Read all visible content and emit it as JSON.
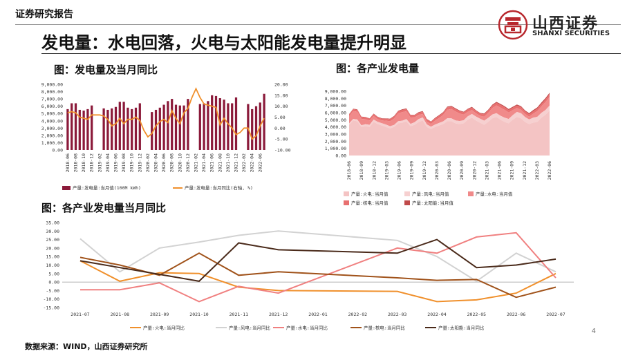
{
  "header": {
    "section_label": "证券研究报告",
    "company_cn": "山西证券",
    "company_en": "SHANXI SECURITIES",
    "brand_color": "#b8282e"
  },
  "slide": {
    "title": "发电量：水电回落，火电与太阳能发电量提升明显",
    "page_number": "4",
    "source": "数据来源：WIND，山西证券研究所"
  },
  "figures": {
    "fig1_title": "图：发电量及当月同比",
    "fig2_title": "图：各产业发电量",
    "fig3_title": "图：各产业发电量当月同比"
  },
  "chart_data": [
    {
      "id": "fig1",
      "type": "bar",
      "x": [
        "2018-06",
        "2018-07",
        "2018-08",
        "2018-09",
        "2018-10",
        "2018-11",
        "2018-12",
        "2019-01",
        "2019-02",
        "2019-03",
        "2019-04",
        "2019-05",
        "2019-06",
        "2019-07",
        "2019-08",
        "2019-09",
        "2019-10",
        "2019-11",
        "2019-12",
        "2020-01",
        "2020-02",
        "2020-03",
        "2020-04",
        "2020-05",
        "2020-06",
        "2020-07",
        "2020-08",
        "2020-09",
        "2020-10",
        "2020-11",
        "2020-12",
        "2021-01",
        "2021-02",
        "2021-03",
        "2021-04",
        "2021-05",
        "2021-06",
        "2021-07",
        "2021-08",
        "2021-09",
        "2021-10",
        "2021-11",
        "2021-12",
        "2022-01",
        "2022-02",
        "2022-03",
        "2022-04",
        "2022-05",
        "2022-06",
        "2022-07"
      ],
      "x_tick_labels": [
        "2018-06",
        "2018-08",
        "2018-10",
        "2018-12",
        "2019-02",
        "2019-04",
        "2019-06",
        "2019-08",
        "2019-10",
        "2019-12",
        "2020-02",
        "2020-04",
        "2020-06",
        "2020-08",
        "2020-10",
        "2020-12",
        "2021-02",
        "2021-04",
        "2021-06",
        "2021-08",
        "2021-10",
        "2021-12",
        "2022-02",
        "2022-04",
        "2022-06"
      ],
      "series": [
        {
          "name": "产量:发电量:当月值(100M kWh)",
          "axis": "left",
          "type": "bar",
          "color": "#8b1a3a",
          "values": [
            5600,
            6400,
            6400,
            5500,
            5400,
            5600,
            6100,
            null,
            null,
            5700,
            5500,
            5700,
            5900,
            6600,
            6600,
            5800,
            5600,
            5800,
            6400,
            null,
            null,
            5200,
            5500,
            5800,
            6200,
            6700,
            7000,
            6200,
            6100,
            6100,
            7000,
            null,
            null,
            6300,
            6400,
            6700,
            7500,
            7400,
            7100,
            6900,
            6400,
            6400,
            7200,
            null,
            null,
            6300,
            5600,
            6000,
            6500,
            7700
          ]
        },
        {
          "name": "产量:发电量:当月同比(右轴, %)",
          "axis": "right",
          "type": "line",
          "color": "#f0902c",
          "values": [
            7.0,
            7.5,
            7.0,
            5.0,
            4.5,
            4.0,
            6.0,
            6.0,
            6.0,
            5.5,
            4.0,
            1.0,
            2.0,
            4.5,
            2.0,
            4.0,
            4.0,
            5.0,
            3.5,
            -1.0,
            -4.0,
            -2.5,
            1.0,
            3.0,
            4.0,
            2.5,
            8.0,
            4.5,
            2.0,
            7.0,
            9.0,
            14.0,
            18.0,
            14.0,
            11.0,
            10.5,
            10.0,
            9.5,
            1.5,
            4.5,
            2.0,
            0.0,
            -3.0,
            -2.0,
            0.0,
            0.0,
            -5.0,
            -3.5,
            1.0,
            4.5
          ]
        }
      ],
      "y_left": {
        "ticks": [
          "0.00",
          "1,000.00",
          "2,000.00",
          "3,000.00",
          "4,000.00",
          "5,000.00",
          "6,000.00",
          "7,000.00",
          "8,000.00",
          "9,000.00"
        ],
        "lim": [
          0,
          9000
        ]
      },
      "y_right": {
        "ticks": [
          "-10.00",
          "-5.00",
          "0.00",
          "5.00",
          "10.00",
          "15.00",
          "20.00"
        ],
        "lim": [
          -10,
          20
        ]
      },
      "legend": [
        "产量:发电量:当月值(100M kWh)",
        "产量:发电量:当月同比(右轴, %)"
      ]
    },
    {
      "id": "fig2",
      "type": "area",
      "x_tick_labels": [
        "2018-06",
        "2018-09",
        "2018-12",
        "2019-03",
        "2019-06",
        "2019-09",
        "2019-12",
        "2020-03",
        "2020-06",
        "2020-09",
        "2020-12",
        "2021-03",
        "2021-06",
        "2021-09",
        "2021-12",
        "2022-03",
        "2022-06"
      ],
      "series": [
        {
          "name": "产量:火电:当月值",
          "color": "#f4c4c4",
          "values": [
            4300,
            4900,
            4800,
            4000,
            4100,
            4000,
            4700,
            4400,
            4200,
            4000,
            3800,
            4000,
            4500,
            4600,
            4800,
            4100,
            4300,
            4700,
            4900,
            4000,
            3700,
            4000,
            4200,
            4400,
            4800,
            4800,
            4500,
            4400,
            4500,
            5000,
            5300,
            4900,
            4600,
            4300,
            4700,
            5200,
            5400,
            5000,
            4700,
            4500,
            5000,
            5400,
            5200,
            4700,
            4400,
            4600,
            4700,
            5300,
            5700,
            6300
          ]
        },
        {
          "name": "产量:风电:当月值",
          "color": "#f6d0d0",
          "values": [
            200,
            220,
            240,
            230,
            280,
            300,
            330,
            300,
            320,
            330,
            300,
            280,
            300,
            280,
            300,
            320,
            350,
            400,
            420,
            350,
            330,
            340,
            360,
            380,
            420,
            400,
            420,
            430,
            440,
            480,
            520,
            560,
            560,
            580,
            560,
            540,
            520,
            560,
            600,
            620,
            650,
            700,
            720,
            680,
            640,
            700,
            720,
            680,
            680,
            700
          ]
        },
        {
          "name": "产量:水电:当月值",
          "color": "#f08a8a",
          "values": [
            1000,
            1100,
            1100,
            900,
            700,
            600,
            500,
            400,
            400,
            550,
            700,
            900,
            1100,
            1200,
            1100,
            900,
            700,
            600,
            500,
            400,
            400,
            550,
            700,
            900,
            1200,
            1300,
            1250,
            1050,
            800,
            650,
            550,
            450,
            400,
            550,
            700,
            900,
            1100,
            1150,
            1100,
            900,
            700,
            550,
            500,
            450,
            400,
            550,
            800,
            900,
            1100,
            1200
          ]
        },
        {
          "name": "产量:核电:当月值",
          "color": "#e87070",
          "values": [
            250,
            260,
            270,
            260,
            260,
            250,
            270,
            260,
            240,
            270,
            280,
            280,
            290,
            300,
            310,
            290,
            280,
            290,
            310,
            300,
            270,
            300,
            300,
            310,
            320,
            330,
            340,
            320,
            310,
            320,
            340,
            340,
            310,
            330,
            330,
            340,
            350,
            360,
            370,
            350,
            340,
            350,
            370,
            360,
            330,
            350,
            350,
            360,
            370,
            380
          ]
        },
        {
          "name": "产量:太阳能:当月值",
          "color": "#c04a4a",
          "values": [
            60,
            60,
            60,
            60,
            60,
            60,
            60,
            60,
            60,
            60,
            80,
            80,
            80,
            90,
            80,
            80,
            70,
            80,
            80,
            70,
            60,
            80,
            100,
            100,
            110,
            110,
            110,
            100,
            90,
            90,
            100,
            90,
            90,
            110,
            120,
            130,
            140,
            150,
            140,
            140,
            130,
            140,
            130,
            130,
            150,
            170,
            170,
            180,
            190,
            200
          ]
        }
      ],
      "y": {
        "ticks": [
          "0.00",
          "1,000.00",
          "2,000.00",
          "3,000.00",
          "4,000.00",
          "5,000.00",
          "6,000.00",
          "7,000.00",
          "8,000.00",
          "9,000.00"
        ],
        "lim": [
          0,
          9000
        ]
      },
      "legend": [
        "产量:火电:当月值",
        "产量:风电:当月值",
        "产量:水电:当月值",
        "产量:核电:当月值",
        "产量:太阳能:当月值"
      ]
    },
    {
      "id": "fig3",
      "type": "line",
      "categories": [
        "2021-07",
        "2021-08",
        "2021-09",
        "2021-10",
        "2021-11",
        "2021-12",
        "2022-01",
        "2022-02",
        "2022-03",
        "2022-04",
        "2022-05",
        "2022-06",
        "2022-07"
      ],
      "series": [
        {
          "name": "产量:火电:当月同比",
          "color": "#f0902c",
          "points": [
            [
              0,
              12.5
            ],
            [
              1,
              0.5
            ],
            [
              2,
              5.5
            ],
            [
              3,
              5.0
            ],
            [
              4,
              -3.0
            ],
            [
              5,
              -5.0
            ],
            [
              8,
              -5.5
            ],
            [
              9,
              -11.5
            ],
            [
              10,
              -10.5
            ],
            [
              11,
              -6.5
            ],
            [
              12,
              5.0
            ]
          ]
        },
        {
          "name": "产量:风电:当月同比",
          "color": "#d2d2d2",
          "points": [
            [
              0,
              25.5
            ],
            [
              1,
              6.0
            ],
            [
              2,
              20.0
            ],
            [
              3,
              23.5
            ],
            [
              4,
              27.5
            ],
            [
              5,
              30.0
            ],
            [
              8,
              24.5
            ],
            [
              9,
              15.0
            ],
            [
              10,
              0.5
            ],
            [
              11,
              17.0
            ],
            [
              12,
              6.0
            ]
          ]
        },
        {
          "name": "产量:水电:当月同比",
          "color": "#f08080",
          "points": [
            [
              0,
              -4.5
            ],
            [
              1,
              -4.5
            ],
            [
              2,
              -0.5
            ],
            [
              3,
              -11.5
            ],
            [
              4,
              -2.5
            ],
            [
              5,
              -6.5
            ],
            [
              8,
              20.0
            ],
            [
              9,
              17.0
            ],
            [
              10,
              26.5
            ],
            [
              11,
              29.0
            ],
            [
              12,
              2.5
            ]
          ]
        },
        {
          "name": "产量:核电:当月同比",
          "color": "#a0521a",
          "points": [
            [
              0,
              14.5
            ],
            [
              1,
              10.0
            ],
            [
              2,
              4.0
            ],
            [
              3,
              17.0
            ],
            [
              4,
              4.0
            ],
            [
              5,
              6.0
            ],
            [
              8,
              2.5
            ],
            [
              9,
              1.0
            ],
            [
              10,
              1.5
            ],
            [
              11,
              -9.0
            ],
            [
              12,
              -3.0
            ]
          ]
        },
        {
          "name": "产量:太阳能:当月同比",
          "color": "#4a2a1a",
          "points": [
            [
              0,
              12.5
            ],
            [
              1,
              8.5
            ],
            [
              2,
              4.5
            ],
            [
              3,
              0.5
            ],
            [
              4,
              23.0
            ],
            [
              5,
              19.0
            ],
            [
              8,
              17.0
            ],
            [
              9,
              25.0
            ],
            [
              10,
              8.5
            ],
            [
              11,
              10.0
            ],
            [
              12,
              13.5
            ]
          ]
        }
      ],
      "y": {
        "ticks": [
          "-15.00",
          "-10.00",
          "-5.00",
          "0.00",
          "5.00",
          "10.00",
          "15.00",
          "20.00",
          "25.00",
          "30.00",
          "35.00"
        ],
        "lim": [
          -15,
          35
        ]
      },
      "legend": [
        "产量:火电:当月同比",
        "产量:风电:当月同比",
        "产量:水电:当月同比",
        "产量:核电:当月同比",
        "产量:太阳能:当月同比"
      ]
    }
  ]
}
